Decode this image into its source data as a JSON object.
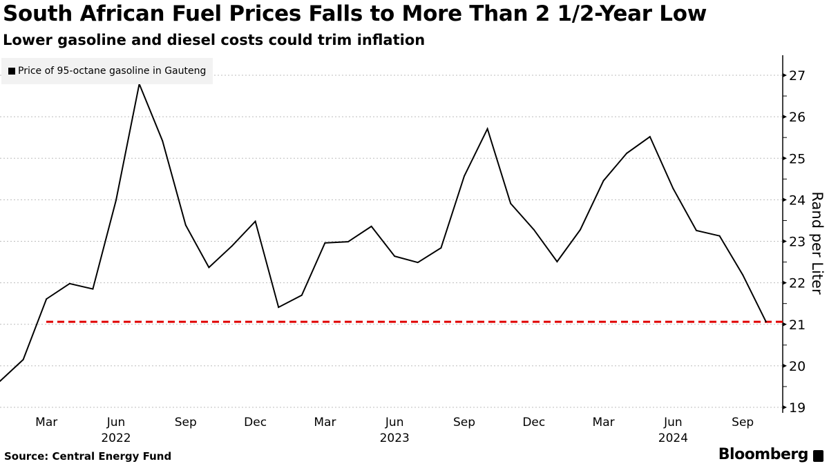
{
  "title": "South African Fuel Prices Falls to More Than 2 1/2-Year Low",
  "subtitle": "Lower gasoline and diesel costs could trim inflation",
  "source": "Source: Central Energy Fund",
  "brand": "Bloomberg",
  "chart_data": {
    "type": "line",
    "title": "South African Fuel Prices Falls to More Than 2 1/2-Year Low",
    "ylabel": "Rand per Liter",
    "ylim": [
      19,
      27
    ],
    "yticks": [
      "19",
      "20",
      "21",
      "22",
      "23",
      "24",
      "25",
      "26",
      "27"
    ],
    "y_axis_position": "right",
    "grid": true,
    "legend": "top-left",
    "xticks": [
      {
        "month": "2022-03",
        "label": "Mar"
      },
      {
        "month": "2022-06",
        "label": "Jun"
      },
      {
        "month": "2022-09",
        "label": "Sep"
      },
      {
        "month": "2022-12",
        "label": "Dec"
      },
      {
        "month": "2023-03",
        "label": "Mar"
      },
      {
        "month": "2023-06",
        "label": "Jun"
      },
      {
        "month": "2023-09",
        "label": "Sep"
      },
      {
        "month": "2023-12",
        "label": "Dec"
      },
      {
        "month": "2024-03",
        "label": "Mar"
      },
      {
        "month": "2024-06",
        "label": "Jun"
      },
      {
        "month": "2024-09",
        "label": "Sep"
      }
    ],
    "year_labels": [
      {
        "month": "2022-06",
        "label": "2022"
      },
      {
        "month": "2023-06",
        "label": "2023"
      },
      {
        "month": "2024-06",
        "label": "2024"
      }
    ],
    "series": [
      {
        "name": "Price of 95-octane gasoline in Gauteng",
        "color": "#000000",
        "x": [
          "2022-01",
          "2022-02",
          "2022-03",
          "2022-04",
          "2022-05",
          "2022-06",
          "2022-07",
          "2022-08",
          "2022-09",
          "2022-10",
          "2022-11",
          "2022-12",
          "2023-01",
          "2023-02",
          "2023-03",
          "2023-04",
          "2023-05",
          "2023-06",
          "2023-07",
          "2023-08",
          "2023-09",
          "2023-10",
          "2023-11",
          "2023-12",
          "2024-01",
          "2024-02",
          "2024-03",
          "2024-04",
          "2024-05",
          "2024-06",
          "2024-07",
          "2024-08",
          "2024-09",
          "2024-10"
        ],
        "values": [
          19.63,
          20.15,
          21.61,
          21.98,
          21.85,
          23.99,
          26.79,
          25.42,
          23.39,
          22.37,
          22.89,
          23.48,
          21.41,
          21.7,
          22.96,
          22.99,
          23.36,
          22.64,
          22.49,
          22.84,
          24.57,
          25.71,
          23.91,
          23.28,
          22.51,
          23.28,
          24.46,
          25.12,
          25.52,
          24.27,
          23.26,
          23.13,
          22.19,
          21.06
        ]
      }
    ],
    "reference_line": {
      "value": 21.06,
      "color": "#e00000",
      "style": "dashed"
    }
  }
}
